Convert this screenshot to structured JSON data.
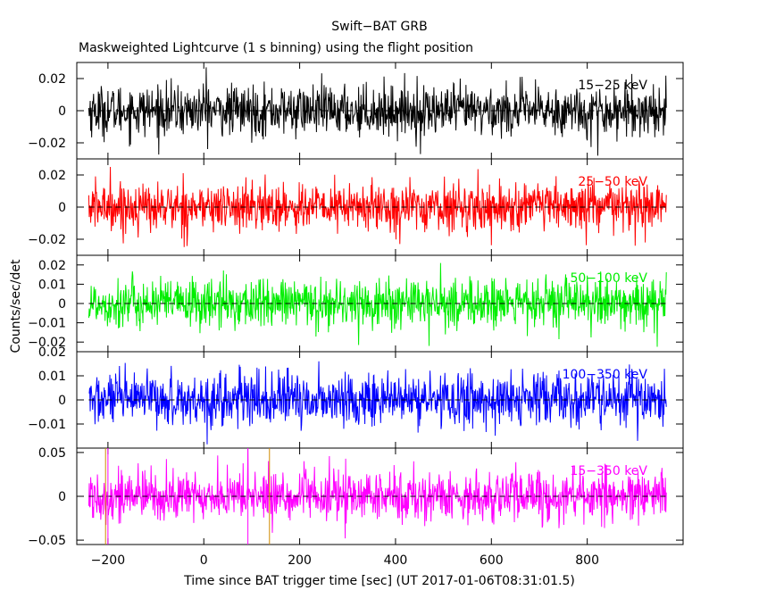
{
  "header": {
    "title": "Swift−BAT GRB",
    "subtitle": "Maskweighted Lightcurve (1 s binning) using the flight position"
  },
  "chart_data": {
    "type": "line",
    "title": "Swift−BAT GRB",
    "subtitle": "Maskweighted Lightcurve (1 s binning) using the flight position",
    "xlabel": "Time since BAT trigger time [sec] (UT 2017-01-06T08:31:01.5)",
    "ylabel": "Counts/sec/det",
    "xlim": [
      -265,
      1000
    ],
    "data_range": [
      -240,
      965
    ],
    "bin_seconds": 1,
    "x_ticks": [
      -200,
      0,
      200,
      400,
      600,
      800
    ],
    "x_tick_labels": [
      "−200",
      "0",
      "200",
      "400",
      "600",
      "800"
    ],
    "markers": [
      {
        "name": "orange-marker",
        "x": -205,
        "color": "#d08a00",
        "panel": 4
      },
      {
        "name": "orange-marker",
        "x": 137,
        "color": "#d08a00",
        "panel": 4
      },
      {
        "name": "magenta-marker",
        "x": -200,
        "color": "#ff00ff",
        "panel": 4
      },
      {
        "name": "magenta-marker",
        "x": 92,
        "color": "#ff00ff",
        "panel": 4
      }
    ],
    "series": [
      {
        "name": "15−25 keV",
        "color": "#000000",
        "ylim": [
          -0.03,
          0.03
        ],
        "ticks": [
          0.02,
          0,
          -0.02
        ],
        "tick_labels": [
          "0.02",
          "0",
          "−0.02"
        ],
        "sigma": 0.0078,
        "spikes": [
          {
            "x": 5,
            "y": 0.027
          },
          {
            "x": 822,
            "y": -0.028
          },
          {
            "x": 452,
            "y": -0.027
          }
        ]
      },
      {
        "name": "25−50 keV",
        "color": "#ff0000",
        "ylim": [
          -0.03,
          0.03
        ],
        "ticks": [
          0.02,
          0,
          -0.02
        ],
        "tick_labels": [
          "0.02",
          "0",
          "−0.02"
        ],
        "sigma": 0.0075,
        "spikes": [
          {
            "x": -195,
            "y": 0.025
          },
          {
            "x": 900,
            "y": -0.024
          }
        ]
      },
      {
        "name": "50−100 keV",
        "color": "#00ee00",
        "ylim": [
          -0.025,
          0.025
        ],
        "ticks": [
          0.02,
          0.01,
          0,
          -0.01,
          -0.02
        ],
        "tick_labels": [
          "0.02",
          "0.01",
          "0",
          "−0.01",
          "−0.02"
        ],
        "sigma": 0.0065,
        "spikes": [
          {
            "x": 470,
            "y": -0.022
          }
        ]
      },
      {
        "name": "100−350 keV",
        "color": "#0000ff",
        "ylim": [
          -0.02,
          0.02
        ],
        "ticks": [
          0.02,
          0.01,
          0,
          -0.01
        ],
        "tick_labels": [
          "0.02",
          "0.01",
          "0",
          "−0.01"
        ],
        "sigma": 0.0055,
        "spikes": [
          {
            "x": 240,
            "y": 0.016
          },
          {
            "x": 905,
            "y": -0.017
          }
        ]
      },
      {
        "name": "15−350 keV",
        "color": "#ff00ff",
        "ylim": [
          -0.055,
          0.055
        ],
        "ticks": [
          0.05,
          0,
          -0.05
        ],
        "tick_labels": [
          "0.05",
          "0",
          "−0.05"
        ],
        "sigma": 0.0145,
        "spikes": [
          {
            "x": 92,
            "y": 0.054
          },
          {
            "x": 295,
            "y": -0.048
          }
        ]
      }
    ]
  }
}
